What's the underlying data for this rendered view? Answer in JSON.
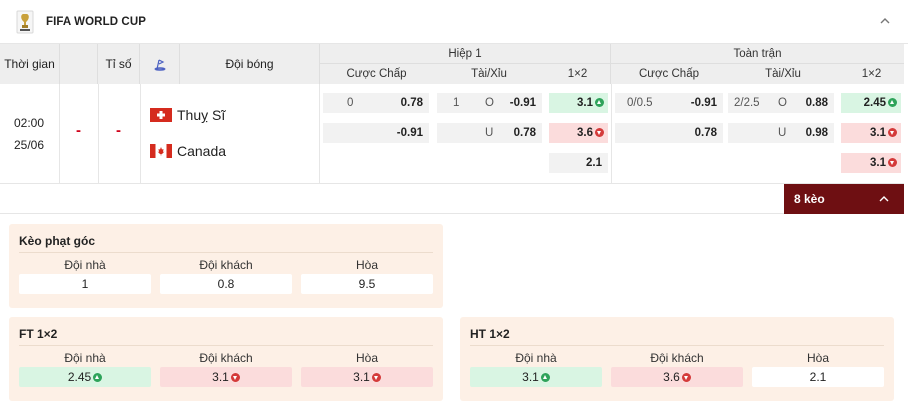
{
  "league": {
    "title": "FIFA WORLD CUP",
    "logo_icon": "world-cup-trophy-icon",
    "collapse_icon": "chevron-up-icon"
  },
  "columns": {
    "time": "Thời gian",
    "score": "Tỉ số",
    "stadium_icon": "stadium-icon",
    "team": "Đội bóng",
    "first_half": "Hiệp 1",
    "full_time": "Toàn trận",
    "handicap": "Cược Chấp",
    "over_under": "Tài/Xỉu",
    "one_x_two": "1×2"
  },
  "match": {
    "time": "02:00",
    "date": "25/06",
    "home_score": "-",
    "away_score": "-",
    "home_team": "Thuỵ Sĩ",
    "away_team": "Canada",
    "home_flag_icon": "switzerland-flag-icon",
    "away_flag_icon": "canada-flag-icon",
    "first_half": {
      "handicap": {
        "line": "0",
        "home": "0.78",
        "away": "-0.91"
      },
      "over_under": {
        "line": "1",
        "over_label": "O",
        "over": "-0.91",
        "under_label": "U",
        "under": "0.78"
      },
      "one_x_two": {
        "home": "3.1",
        "home_trend": "up",
        "away": "3.6",
        "away_trend": "down",
        "draw": "2.1"
      }
    },
    "full_time": {
      "handicap": {
        "line": "0/0.5",
        "home": "-0.91",
        "away": "0.78"
      },
      "over_under": {
        "line": "2/2.5",
        "over_label": "O",
        "over": "0.88",
        "under_label": "U",
        "under": "0.98"
      },
      "one_x_two": {
        "home": "2.45",
        "home_trend": "up",
        "away": "3.1",
        "away_trend": "down",
        "draw": "3.1",
        "draw_trend": "down"
      }
    }
  },
  "more": {
    "label": "8 kèo",
    "icon": "chevron-up-icon"
  },
  "panels": {
    "corners": {
      "title": "Kèo phạt góc",
      "home_label": "Đội nhà",
      "away_label": "Đội khách",
      "draw_label": "Hòa",
      "home": "1",
      "away": "0.8",
      "draw": "9.5"
    },
    "ft_1x2": {
      "title": "FT 1×2",
      "home_label": "Đội nhà",
      "away_label": "Đội khách",
      "draw_label": "Hòa",
      "home": "2.45",
      "home_trend": "up",
      "away": "3.1",
      "away_trend": "down",
      "draw": "3.1",
      "draw_trend": "down"
    },
    "ht_1x2": {
      "title": "HT 1×2",
      "home_label": "Đội nhà",
      "away_label": "Đội khách",
      "draw_label": "Hòa",
      "home": "3.1",
      "home_trend": "up",
      "away": "3.6",
      "away_trend": "down",
      "draw": "2.1"
    }
  },
  "colors": {
    "up": "#2ea35a",
    "down": "#d43a3a",
    "up_bg": "#d9f5e3",
    "down_bg": "#fbdcdc",
    "accent": "#6e0f12",
    "panel_bg": "#fdf0e6"
  }
}
